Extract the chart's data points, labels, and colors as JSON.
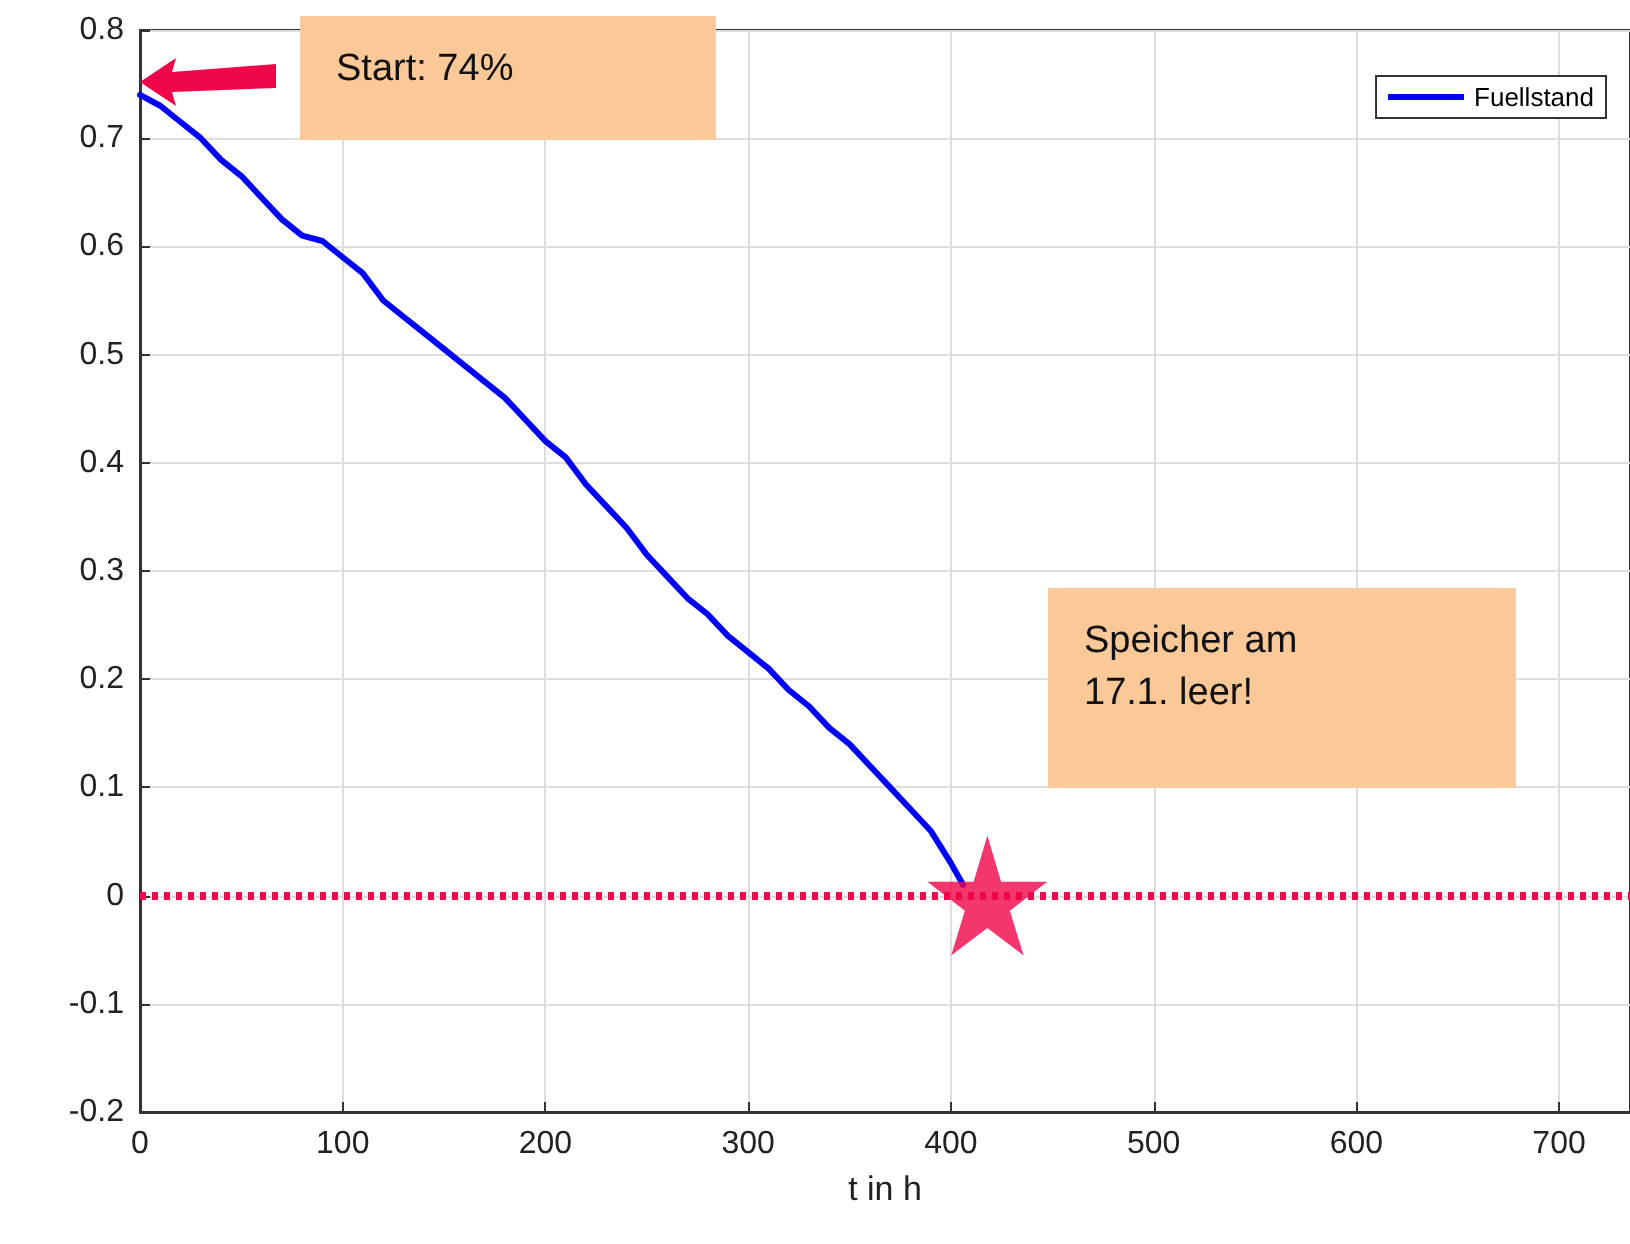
{
  "chart_data": {
    "type": "line",
    "xlabel": "t in h",
    "x": [
      0,
      10,
      20,
      30,
      40,
      50,
      60,
      70,
      80,
      90,
      100,
      110,
      120,
      130,
      140,
      150,
      160,
      170,
      180,
      190,
      200,
      210,
      220,
      230,
      240,
      250,
      260,
      270,
      280,
      290,
      300,
      310,
      320,
      330,
      340,
      350,
      360,
      370,
      380,
      390,
      400,
      406
    ],
    "series": [
      {
        "name": "Fuellstand",
        "color": "#0000ff",
        "values": [
          0.74,
          0.73,
          0.715,
          0.7,
          0.68,
          0.665,
          0.645,
          0.625,
          0.61,
          0.605,
          0.59,
          0.575,
          0.55,
          0.535,
          0.52,
          0.505,
          0.49,
          0.475,
          0.46,
          0.44,
          0.42,
          0.405,
          0.38,
          0.36,
          0.34,
          0.315,
          0.295,
          0.275,
          0.26,
          0.24,
          0.225,
          0.21,
          0.19,
          0.175,
          0.155,
          0.14,
          0.12,
          0.1,
          0.08,
          0.06,
          0.03,
          0.01
        ]
      },
      {
        "type": "scatter",
        "marker": "star",
        "color": "#f0054a",
        "x": [
          418
        ],
        "values": [
          0
        ]
      }
    ],
    "xlim": [
      0,
      735
    ],
    "xticks": [
      0,
      100,
      200,
      300,
      400,
      500,
      600,
      700
    ],
    "ylim": [
      -0.2,
      0.8
    ],
    "yticks": [
      -0.2,
      -0.1,
      0,
      0.1,
      0.2,
      0.3,
      0.4,
      0.5,
      0.6,
      0.7,
      0.8
    ],
    "grid": true,
    "legend": "top right",
    "marker": "none",
    "line_style": "solid",
    "ref_lines": [
      {
        "axis": "y",
        "value": 0,
        "color": "#f0054a",
        "line_style": "dotted"
      }
    ],
    "annotations": [
      "Start: 74%",
      "Speicher am 17.1. leer!"
    ]
  }
}
